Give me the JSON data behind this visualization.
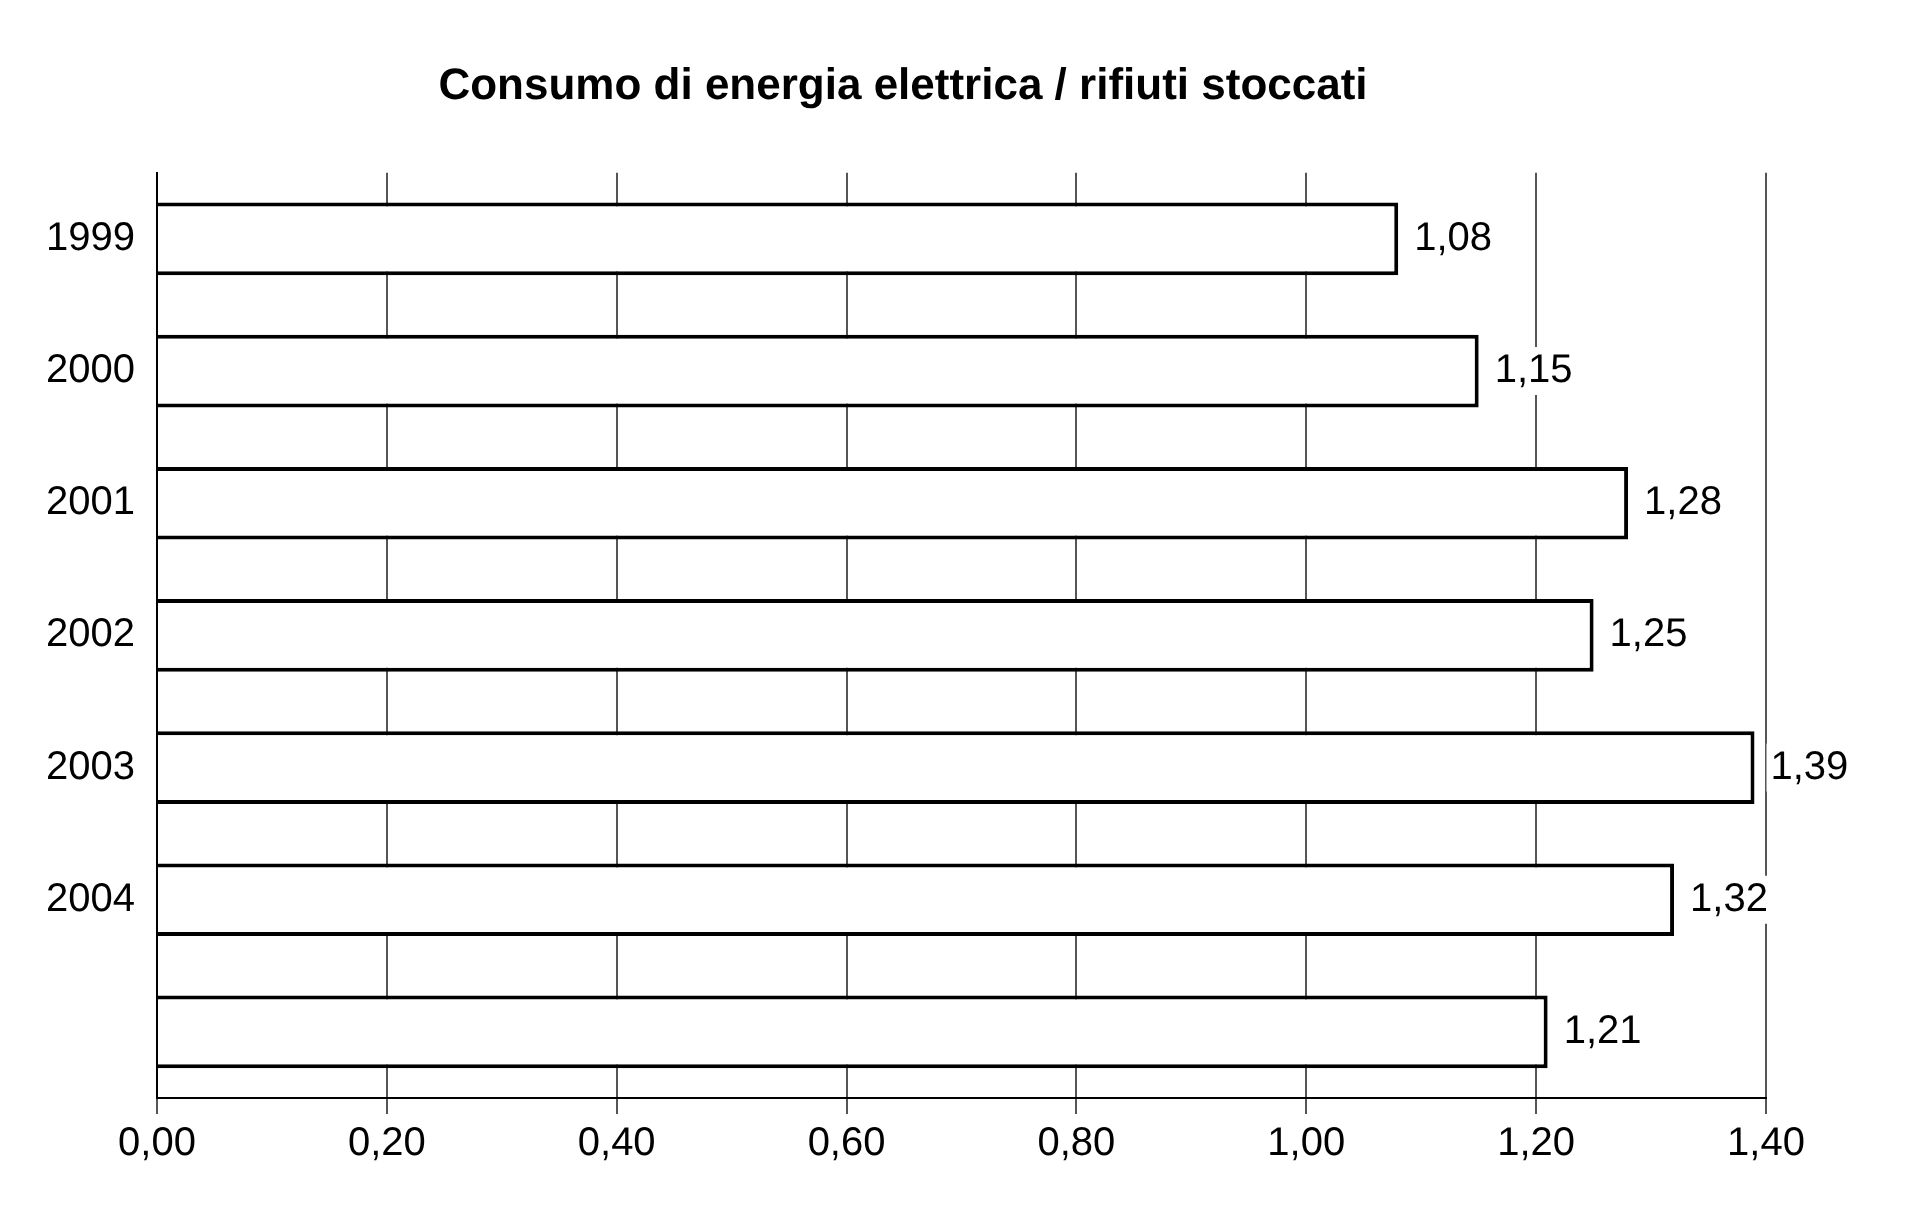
{
  "chart_data": {
    "type": "bar",
    "orientation": "horizontal",
    "title": "Consumo di energia elettrica / rifiuti stoccati",
    "categories": [
      "1999",
      "2000",
      "2001",
      "2002",
      "2003",
      "2004",
      null
    ],
    "values": [
      1.08,
      1.15,
      1.28,
      1.25,
      1.39,
      1.32,
      1.21
    ],
    "value_labels": [
      "1,08",
      "1,15",
      "1,28",
      "1,25",
      "1,39",
      "1,32",
      "1,21"
    ],
    "color": "#ffffff",
    "xlim": [
      0,
      1.4
    ],
    "xticks": [
      {
        "value": 0,
        "label": "0,00"
      },
      {
        "value": 0.2,
        "label": "0,20"
      },
      {
        "value": 0.4,
        "label": "0,40"
      },
      {
        "value": 0.6,
        "label": "0,60"
      },
      {
        "value": 0.8,
        "label": "0,80"
      },
      {
        "value": 1.0,
        "label": "1,00"
      },
      {
        "value": 1.2,
        "label": "1,20"
      },
      {
        "value": 1.4,
        "label": "1,40"
      }
    ],
    "grid": "x"
  }
}
